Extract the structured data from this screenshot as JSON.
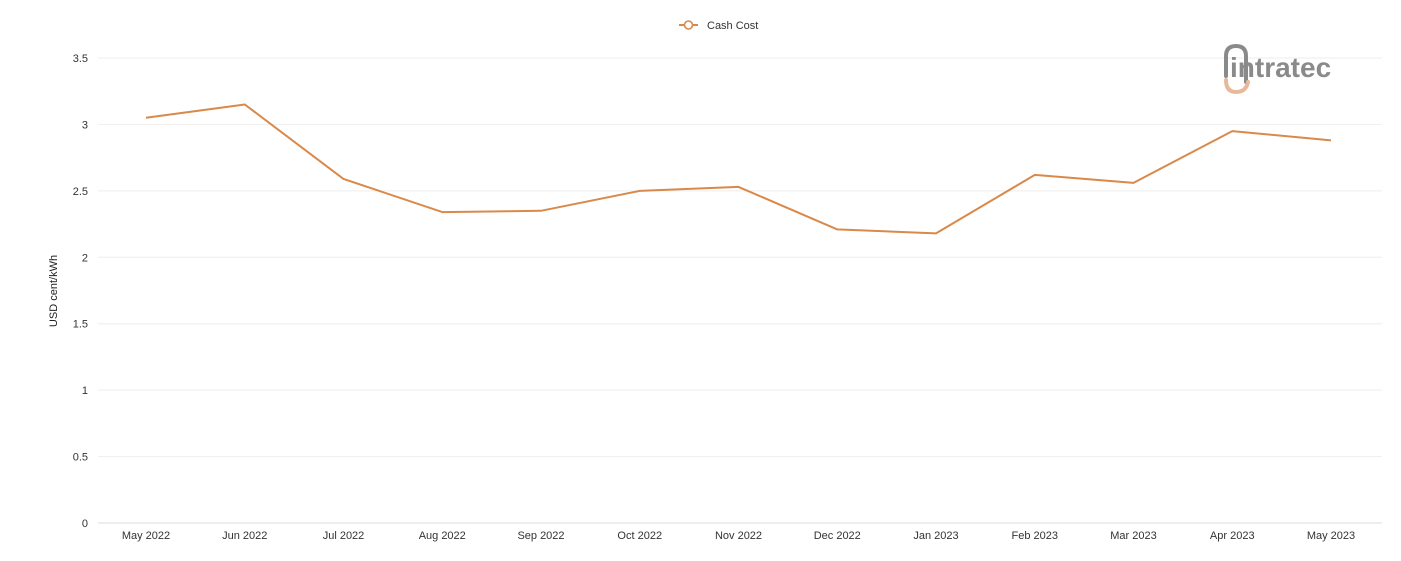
{
  "colors": {
    "series": "#D9894A",
    "grid": "#EEEEEE",
    "axis": "#DDDDDD",
    "logo_gray": "#8A8A8A",
    "logo_orange": "#E7B99A"
  },
  "logo": {
    "text": "intratec"
  },
  "chart_data": {
    "type": "line",
    "title": "",
    "xlabel": "",
    "ylabel": "USD cent/kWh",
    "ylim": [
      0,
      3.5
    ],
    "yticks": [
      0,
      0.5,
      1,
      1.5,
      2,
      2.5,
      3,
      3.5
    ],
    "ytick_labels": [
      "0",
      "0.5",
      "1",
      "1.5",
      "2",
      "2.5",
      "3",
      "3.5"
    ],
    "grid": true,
    "legend_position": "top-center",
    "categories": [
      "May 2022",
      "Jun 2022",
      "Jul 2022",
      "Aug 2022",
      "Sep 2022",
      "Oct 2022",
      "Nov 2022",
      "Dec 2022",
      "Jan 2023",
      "Feb 2023",
      "Mar 2023",
      "Apr 2023",
      "May 2023"
    ],
    "series": [
      {
        "name": "Cash Cost",
        "values": [
          3.05,
          3.15,
          2.59,
          2.34,
          2.35,
          2.5,
          2.53,
          2.21,
          2.18,
          2.62,
          2.56,
          2.95,
          2.88
        ]
      }
    ]
  }
}
